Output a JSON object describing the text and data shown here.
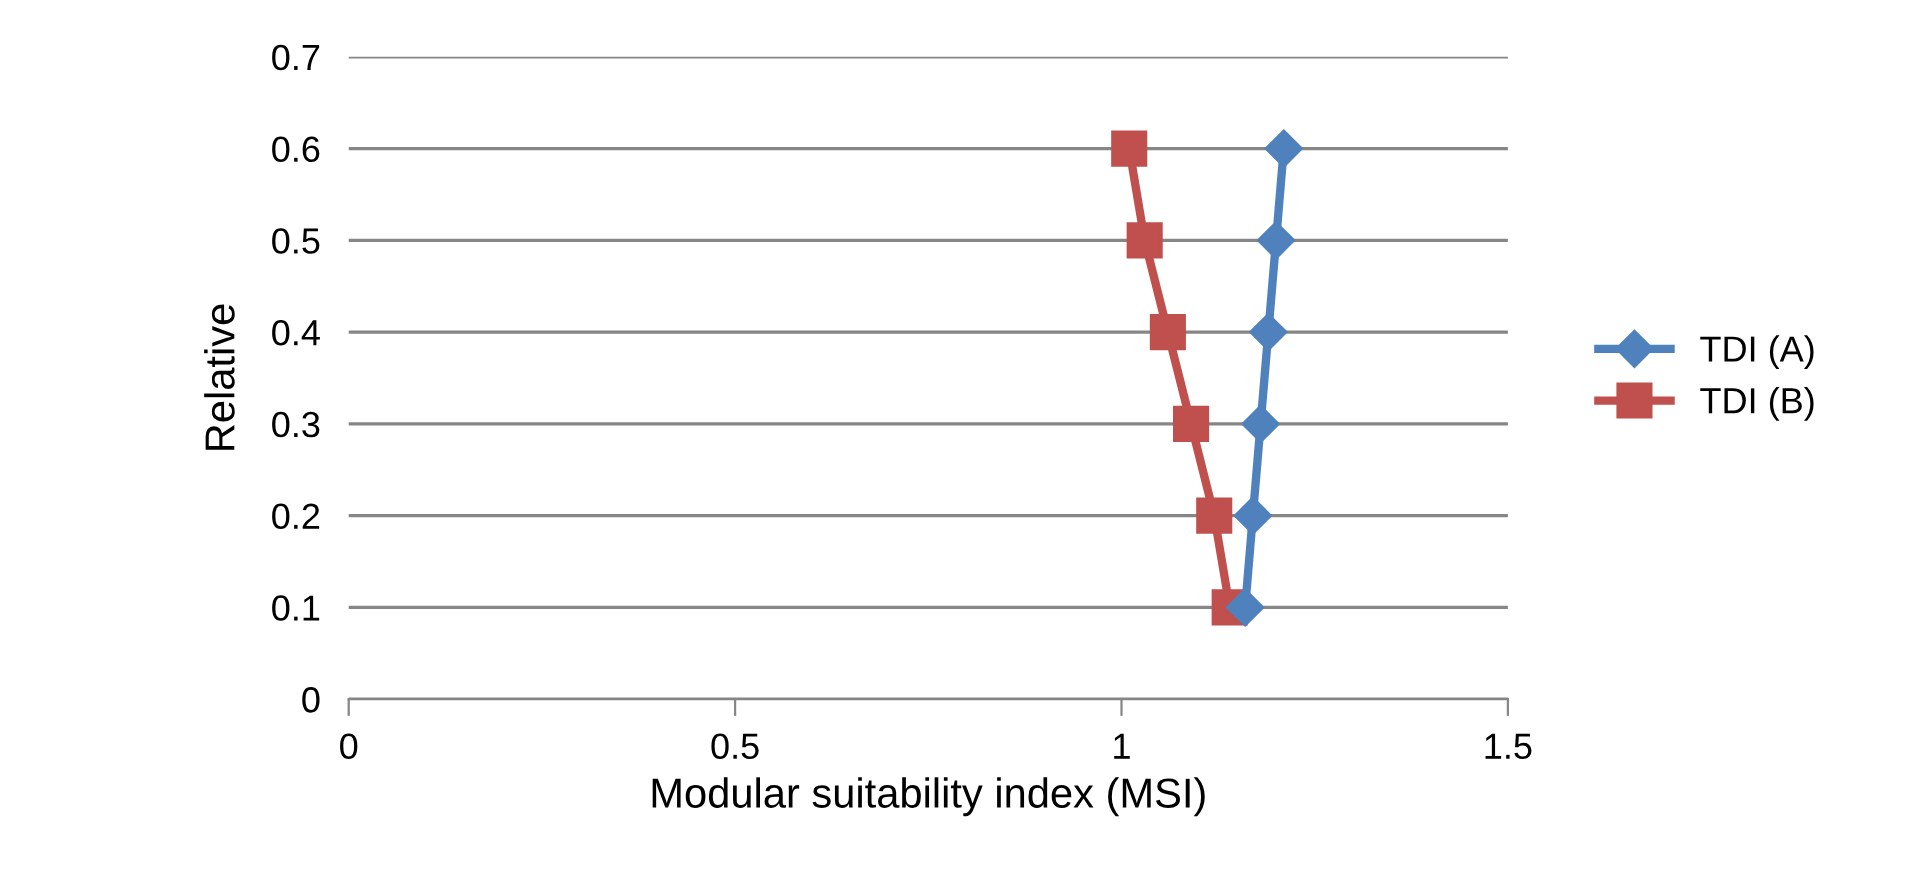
{
  "chart_data": {
    "type": "line",
    "xlabel": "Modular suitability index (MSI)",
    "ylabel": "Relative",
    "xlim": [
      0,
      1.5
    ],
    "xticks": [
      0,
      0.5,
      1,
      1.5
    ],
    "ylim": [
      0,
      0.7
    ],
    "yticks": [
      0,
      0.1,
      0.2,
      0.3,
      0.4,
      0.5,
      0.6,
      0.7
    ],
    "grid": "y",
    "legend": "right",
    "line_style": "solid",
    "series": [
      {
        "name": "TDI (A)",
        "color": "#4f81bd",
        "marker": "diamond",
        "x": [
          1.16,
          1.17,
          1.18,
          1.19,
          1.2,
          1.21
        ],
        "values": [
          0.1,
          0.2,
          0.3,
          0.4,
          0.5,
          0.6
        ]
      },
      {
        "name": "TDI (B)",
        "color": "#c0504d",
        "marker": "square",
        "x": [
          1.14,
          1.12,
          1.09,
          1.06,
          1.03,
          1.01
        ],
        "values": [
          0.1,
          0.2,
          0.3,
          0.4,
          0.5,
          0.6
        ]
      }
    ]
  }
}
